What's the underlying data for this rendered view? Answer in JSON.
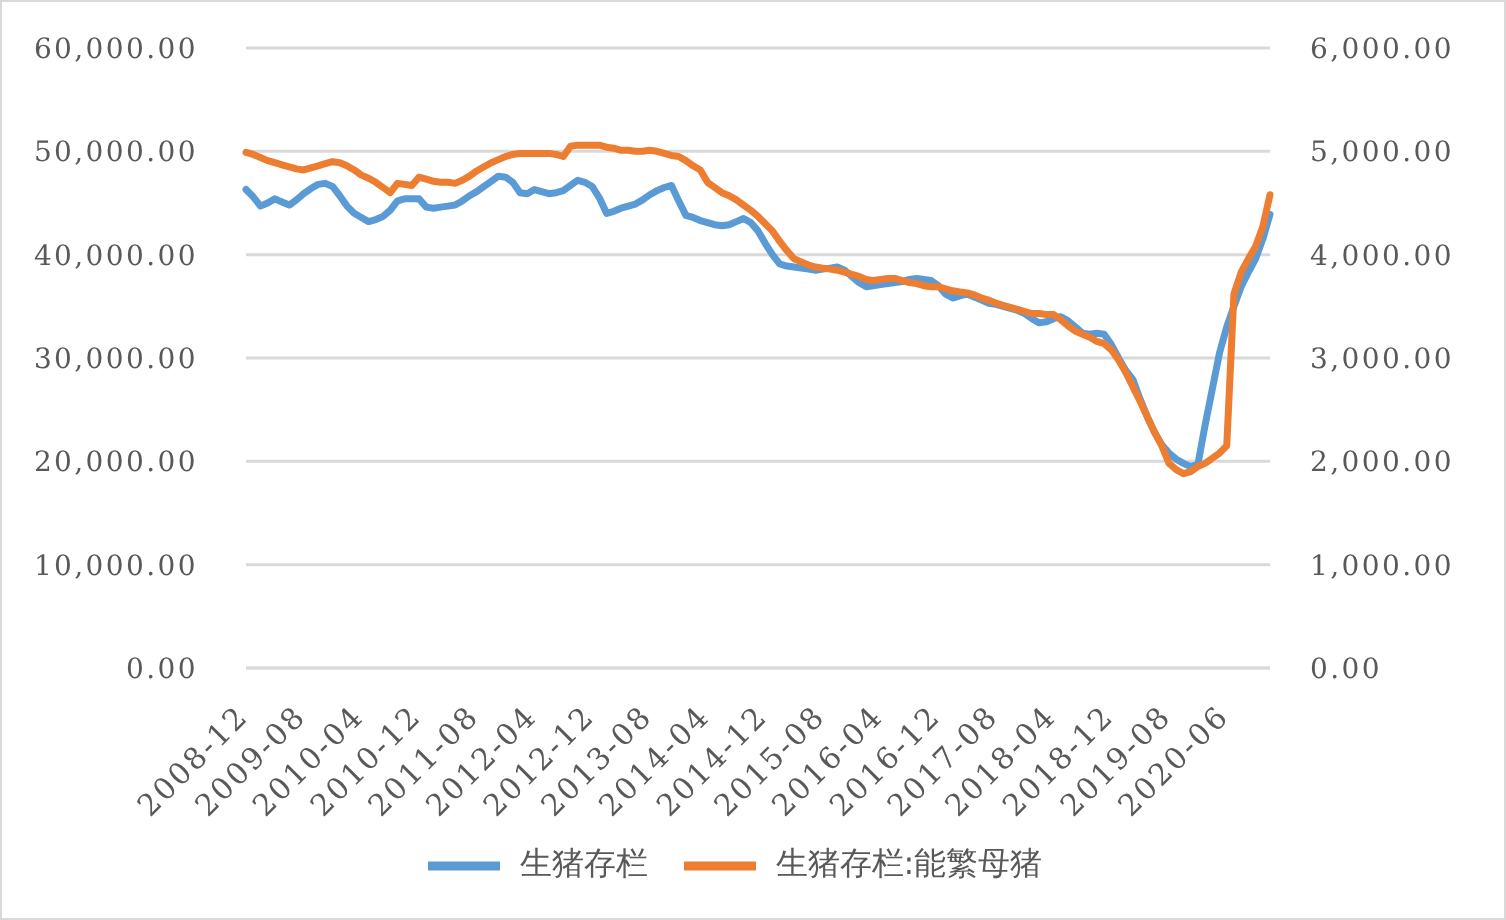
{
  "chart_data": {
    "type": "line",
    "categories": [
      "2008-12",
      null,
      null,
      null,
      null,
      null,
      null,
      null,
      "2009-08",
      null,
      null,
      null,
      null,
      null,
      null,
      null,
      "2010-04",
      null,
      null,
      null,
      null,
      null,
      null,
      null,
      "2010-12",
      null,
      null,
      null,
      null,
      null,
      null,
      null,
      "2011-08",
      null,
      null,
      null,
      null,
      null,
      null,
      null,
      "2012-04",
      null,
      null,
      null,
      null,
      null,
      null,
      null,
      "2012-12",
      null,
      null,
      null,
      null,
      null,
      null,
      null,
      "2013-08",
      null,
      null,
      null,
      null,
      null,
      null,
      null,
      "2014-04",
      null,
      null,
      null,
      null,
      null,
      null,
      null,
      "2014-12",
      null,
      null,
      null,
      null,
      null,
      null,
      null,
      "2015-08",
      null,
      null,
      null,
      null,
      null,
      null,
      null,
      "2016-04",
      null,
      null,
      null,
      null,
      null,
      null,
      null,
      "2016-12",
      null,
      null,
      null,
      null,
      null,
      null,
      null,
      "2017-08",
      null,
      null,
      null,
      null,
      null,
      null,
      null,
      "2018-04",
      null,
      null,
      null,
      null,
      null,
      null,
      null,
      "2018-12",
      null,
      null,
      null,
      null,
      null,
      null,
      null,
      "2019-08",
      null,
      null,
      null,
      null,
      null,
      null,
      null,
      "2020-06",
      null,
      null,
      null,
      null,
      null,
      null
    ],
    "series": [
      {
        "name": "生猪存栏",
        "color": "#5b9bd5",
        "values": [
          46300,
          45600,
          44700,
          45000,
          45400,
          45100,
          44800,
          45300,
          45900,
          46400,
          46800,
          46900,
          46600,
          45700,
          44700,
          44000,
          43600,
          43200,
          43400,
          43700,
          44300,
          45200,
          45400,
          45400,
          45400,
          44600,
          44500,
          44600,
          44700,
          44800,
          45200,
          45700,
          46100,
          46600,
          47100,
          47600,
          47500,
          47000,
          46000,
          45900,
          46300,
          46100,
          45900,
          46000,
          46200,
          46700,
          47200,
          47000,
          46600,
          45500,
          44000,
          44200,
          44500,
          44700,
          44900,
          45300,
          45800,
          46200,
          46500,
          46700,
          45200,
          43800,
          43600,
          43300,
          43100,
          42900,
          42800,
          42900,
          43200,
          43500,
          43100,
          42300,
          41100,
          40000,
          39100,
          38900,
          38800,
          38700,
          38600,
          38500,
          38600,
          38700,
          38800,
          38500,
          37900,
          37300,
          36900,
          37000,
          37100,
          37200,
          37300,
          37400,
          37600,
          37700,
          37600,
          37500,
          37000,
          36200,
          35800,
          36000,
          36200,
          35900,
          35600,
          35300,
          35200,
          35000,
          34800,
          34600,
          34300,
          33800,
          33400,
          33500,
          33800,
          34000,
          33600,
          33000,
          32400,
          32300,
          32400,
          32300,
          31300,
          30000,
          28800,
          27900,
          26000,
          24300,
          22800,
          21600,
          20800,
          20200,
          19800,
          19500,
          19700,
          23500,
          27000,
          30500,
          33000,
          35000,
          36900,
          38300,
          39600,
          41500,
          43900
        ]
      },
      {
        "name": "生猪存栏:能繁母猪",
        "color": "#ed7d31",
        "axis": "y2",
        "values": [
          4990,
          4970,
          4940,
          4910,
          4890,
          4870,
          4850,
          4830,
          4820,
          4840,
          4860,
          4880,
          4900,
          4890,
          4860,
          4820,
          4770,
          4740,
          4700,
          4650,
          4600,
          4690,
          4680,
          4670,
          4750,
          4730,
          4710,
          4700,
          4700,
          4690,
          4720,
          4760,
          4810,
          4850,
          4890,
          4920,
          4950,
          4970,
          4980,
          4980,
          4980,
          4980,
          4980,
          4970,
          4950,
          5050,
          5060,
          5060,
          5060,
          5060,
          5040,
          5030,
          5010,
          5010,
          5000,
          5000,
          5010,
          5000,
          4980,
          4960,
          4950,
          4910,
          4860,
          4820,
          4700,
          4650,
          4600,
          4570,
          4530,
          4480,
          4430,
          4370,
          4300,
          4230,
          4130,
          4040,
          3960,
          3930,
          3900,
          3880,
          3870,
          3860,
          3850,
          3830,
          3810,
          3790,
          3760,
          3750,
          3760,
          3770,
          3770,
          3750,
          3730,
          3720,
          3700,
          3690,
          3690,
          3670,
          3650,
          3640,
          3630,
          3610,
          3580,
          3560,
          3530,
          3510,
          3490,
          3470,
          3450,
          3430,
          3430,
          3420,
          3420,
          3370,
          3310,
          3260,
          3230,
          3200,
          3160,
          3140,
          3080,
          2980,
          2860,
          2720,
          2580,
          2430,
          2280,
          2150,
          1980,
          1920,
          1880,
          1900,
          1950,
          1980,
          2030,
          2080,
          2150,
          3620,
          3830,
          3960,
          4080,
          4270,
          4580
        ]
      }
    ],
    "ylim": [
      0,
      60000
    ],
    "yticks": [
      {
        "value": 0,
        "label": "0.00"
      },
      {
        "value": 10000,
        "label": "10,000.00"
      },
      {
        "value": 20000,
        "label": "20,000.00"
      },
      {
        "value": 30000,
        "label": "30,000.00"
      },
      {
        "value": 40000,
        "label": "40,000.00"
      },
      {
        "value": 50000,
        "label": "50,000.00"
      },
      {
        "value": 60000,
        "label": "60,000.00"
      }
    ],
    "y2lim": [
      0,
      6000
    ],
    "y2ticks": [
      {
        "value": 0,
        "label": "0.00"
      },
      {
        "value": 1000,
        "label": "1,000.00"
      },
      {
        "value": 2000,
        "label": "2,000.00"
      },
      {
        "value": 3000,
        "label": "3,000.00"
      },
      {
        "value": 4000,
        "label": "4,000.00"
      },
      {
        "value": 5000,
        "label": "5,000.00"
      },
      {
        "value": 6000,
        "label": "6,000.00"
      }
    ],
    "grid": "y",
    "legend": "bottom"
  }
}
